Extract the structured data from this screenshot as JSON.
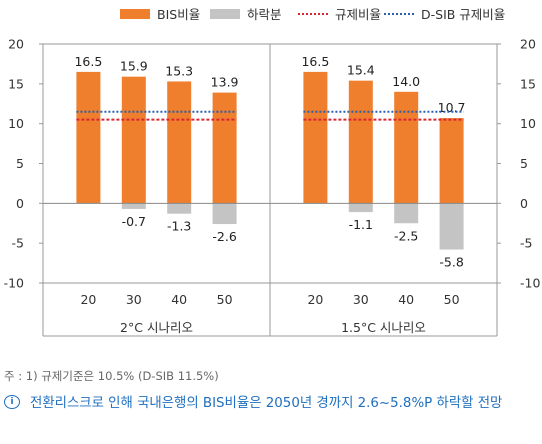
{
  "legend": [
    {
      "label": "BIS비율",
      "kind": "box",
      "color": "#ef7f2c"
    },
    {
      "label": "하락분",
      "kind": "box",
      "color": "#c4c4c4"
    },
    {
      "label": "규제비율",
      "kind": "line",
      "color": "#d92632"
    },
    {
      "label": "D-SIB 규제비율",
      "kind": "line",
      "color": "#2a5fb0"
    }
  ],
  "chart_data": {
    "type": "bar",
    "ylim": [
      -10,
      20
    ],
    "yticks": [
      20,
      15,
      10,
      5,
      0,
      -5,
      -10
    ],
    "grid": false,
    "legend_position": "top",
    "groups": [
      {
        "label": "2°C 시나리오",
        "categories": [
          "20",
          "30",
          "40",
          "50"
        ],
        "bis_ratio": [
          16.5,
          15.9,
          15.3,
          13.9
        ],
        "decline": [
          null,
          -0.7,
          -1.3,
          -2.6
        ],
        "bis_labels": [
          "16.5",
          "15.9",
          "15.3",
          "13.9"
        ],
        "decline_labels": [
          "",
          "-0.7",
          "-1.3",
          "-2.6"
        ]
      },
      {
        "label": "1.5°C 시나리오",
        "categories": [
          "20",
          "30",
          "40",
          "50"
        ],
        "bis_ratio": [
          16.5,
          15.4,
          14.0,
          10.7
        ],
        "decline": [
          null,
          -1.1,
          -2.5,
          -5.8
        ],
        "bis_labels": [
          "16.5",
          "15.4",
          "14.0",
          "10.7"
        ],
        "decline_labels": [
          "",
          "-1.1",
          "-2.5",
          "-5.8"
        ]
      }
    ],
    "regulatory_ratio": 10.5,
    "dsib_ratio": 11.5,
    "colors": {
      "bis": "#ef7f2c",
      "decline": "#c4c4c4",
      "regulatory": "#d92632",
      "dsib": "#2a5fb0"
    }
  },
  "footnote": "주 : 1) 규제기준은 10.5% (D-SIB 11.5%)",
  "note": {
    "icon": "info-icon",
    "text": "전환리스크로 인해 국내은행의 BIS비율은 2050년 경까지 2.6~5.8%P 하락할 전망"
  }
}
